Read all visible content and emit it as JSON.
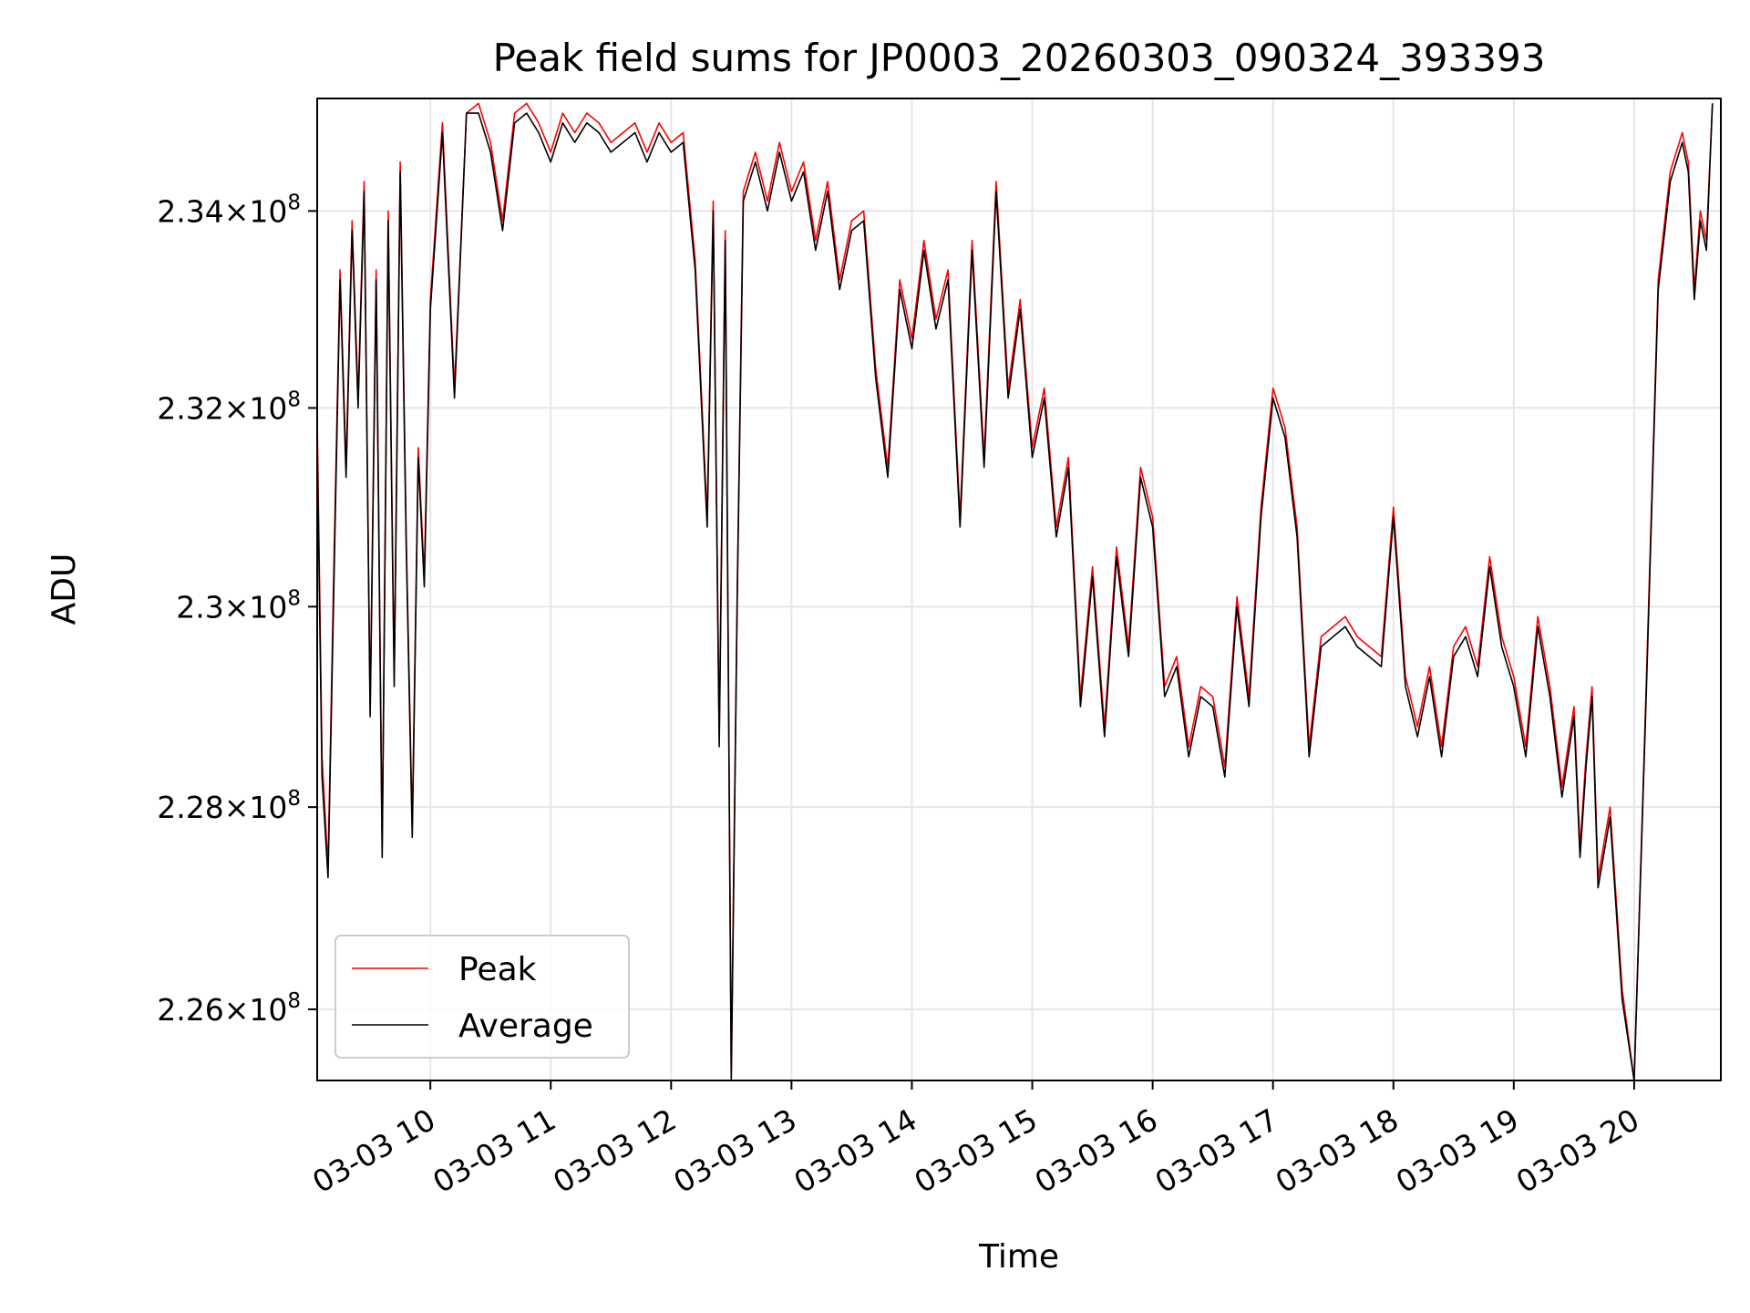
{
  "chart_data": {
    "type": "line",
    "title": "Peak field sums for JP0003_20260303_090324_393393",
    "xlabel": "Time",
    "ylabel": "ADU",
    "x_unit": "hours (date 03-03)",
    "xlim": [
      9.06,
      20.72
    ],
    "ylim": [
      225300000,
      235150000
    ],
    "y_scale": "log",
    "grid": true,
    "legend_position": "lower-left",
    "x_ticks": [
      {
        "value": 10,
        "label": "03-03 10"
      },
      {
        "value": 11,
        "label": "03-03 11"
      },
      {
        "value": 12,
        "label": "03-03 12"
      },
      {
        "value": 13,
        "label": "03-03 13"
      },
      {
        "value": 14,
        "label": "03-03 14"
      },
      {
        "value": 15,
        "label": "03-03 15"
      },
      {
        "value": 16,
        "label": "03-03 16"
      },
      {
        "value": 17,
        "label": "03-03 17"
      },
      {
        "value": 18,
        "label": "03-03 18"
      },
      {
        "value": 19,
        "label": "03-03 19"
      },
      {
        "value": 20,
        "label": "03-03 20"
      }
    ],
    "y_ticks": [
      {
        "value": 226000000,
        "mantissa": "2.26",
        "exp": "8"
      },
      {
        "value": 228000000,
        "mantissa": "2.28",
        "exp": "8"
      },
      {
        "value": 230000000,
        "mantissa": "2.3",
        "exp": "8"
      },
      {
        "value": 232000000,
        "mantissa": "2.32",
        "exp": "8"
      },
      {
        "value": 234000000,
        "mantissa": "2.34",
        "exp": "8"
      }
    ],
    "series": [
      {
        "name": "Peak",
        "color": "#ff0000",
        "x": [
          9.06,
          9.1,
          9.15,
          9.2,
          9.25,
          9.3,
          9.35,
          9.4,
          9.45,
          9.5,
          9.55,
          9.6,
          9.65,
          9.7,
          9.75,
          9.8,
          9.85,
          9.9,
          9.95,
          10.0,
          10.1,
          10.2,
          10.3,
          10.4,
          10.5,
          10.6,
          10.7,
          10.8,
          10.9,
          11.0,
          11.1,
          11.2,
          11.3,
          11.4,
          11.5,
          11.6,
          11.7,
          11.8,
          11.9,
          12.0,
          12.1,
          12.2,
          12.3,
          12.35,
          12.4,
          12.45,
          12.5,
          12.55,
          12.6,
          12.7,
          12.8,
          12.9,
          13.0,
          13.1,
          13.2,
          13.3,
          13.4,
          13.5,
          13.6,
          13.7,
          13.8,
          13.9,
          14.0,
          14.1,
          14.2,
          14.3,
          14.4,
          14.5,
          14.6,
          14.7,
          14.8,
          14.9,
          15.0,
          15.1,
          15.2,
          15.3,
          15.4,
          15.5,
          15.6,
          15.7,
          15.8,
          15.9,
          16.0,
          16.1,
          16.2,
          16.3,
          16.4,
          16.5,
          16.6,
          16.7,
          16.8,
          16.9,
          17.0,
          17.1,
          17.2,
          17.3,
          17.4,
          17.5,
          17.6,
          17.7,
          17.8,
          17.9,
          18.0,
          18.1,
          18.2,
          18.3,
          18.4,
          18.5,
          18.6,
          18.7,
          18.8,
          18.9,
          19.0,
          19.1,
          19.2,
          19.3,
          19.4,
          19.5,
          19.55,
          19.6,
          19.65,
          19.7,
          19.8,
          19.9,
          20.0,
          20.1,
          20.2,
          20.3,
          20.4,
          20.45,
          20.5,
          20.55,
          20.6,
          20.65
        ],
        "values": [
          231900000,
          228500000,
          227400000,
          230500000,
          233400000,
          231400000,
          233900000,
          232100000,
          234300000,
          229000000,
          233400000,
          227600000,
          234000000,
          229300000,
          234500000,
          230700000,
          227800000,
          231600000,
          230300000,
          233100000,
          234900000,
          232200000,
          235000000,
          235100000,
          234700000,
          233900000,
          235000000,
          235100000,
          234900000,
          234600000,
          235000000,
          234800000,
          235000000,
          234900000,
          234700000,
          234800000,
          234900000,
          234600000,
          234900000,
          234700000,
          234800000,
          233500000,
          230900000,
          234100000,
          228700000,
          233800000,
          225400000,
          230200000,
          234200000,
          234600000,
          234100000,
          234700000,
          234200000,
          234500000,
          233700000,
          234300000,
          233300000,
          233900000,
          234000000,
          232400000,
          231400000,
          233300000,
          232700000,
          233700000,
          232900000,
          233400000,
          230900000,
          233700000,
          231500000,
          234300000,
          232200000,
          233100000,
          231600000,
          232200000,
          230800000,
          231500000,
          229100000,
          230400000,
          228800000,
          230600000,
          229600000,
          231400000,
          230900000,
          229200000,
          229500000,
          228600000,
          229200000,
          229100000,
          228400000,
          230100000,
          229100000,
          231000000,
          232200000,
          231800000,
          230800000,
          228600000,
          229700000,
          229800000,
          229900000,
          229700000,
          229600000,
          229500000,
          231000000,
          229300000,
          228800000,
          229400000,
          228600000,
          229600000,
          229800000,
          229400000,
          230500000,
          229700000,
          229300000,
          228600000,
          229900000,
          229200000,
          228200000,
          229000000,
          227600000,
          228500000,
          229200000,
          227300000,
          228000000,
          226200000,
          225300000,
          229200000,
          233300000,
          234400000,
          234800000,
          234500000,
          233200000,
          234000000,
          233700000,
          235100000
        ]
      },
      {
        "name": "Average",
        "color": "#000000",
        "x": [
          9.06,
          9.1,
          9.15,
          9.2,
          9.25,
          9.3,
          9.35,
          9.4,
          9.45,
          9.5,
          9.55,
          9.6,
          9.65,
          9.7,
          9.75,
          9.8,
          9.85,
          9.9,
          9.95,
          10.0,
          10.1,
          10.2,
          10.3,
          10.4,
          10.5,
          10.6,
          10.7,
          10.8,
          10.9,
          11.0,
          11.1,
          11.2,
          11.3,
          11.4,
          11.5,
          11.6,
          11.7,
          11.8,
          11.9,
          12.0,
          12.1,
          12.2,
          12.3,
          12.35,
          12.4,
          12.45,
          12.5,
          12.55,
          12.6,
          12.7,
          12.8,
          12.9,
          13.0,
          13.1,
          13.2,
          13.3,
          13.4,
          13.5,
          13.6,
          13.7,
          13.8,
          13.9,
          14.0,
          14.1,
          14.2,
          14.3,
          14.4,
          14.5,
          14.6,
          14.7,
          14.8,
          14.9,
          15.0,
          15.1,
          15.2,
          15.3,
          15.4,
          15.5,
          15.6,
          15.7,
          15.8,
          15.9,
          16.0,
          16.1,
          16.2,
          16.3,
          16.4,
          16.5,
          16.6,
          16.7,
          16.8,
          16.9,
          17.0,
          17.1,
          17.2,
          17.3,
          17.4,
          17.5,
          17.6,
          17.7,
          17.8,
          17.9,
          18.0,
          18.1,
          18.2,
          18.3,
          18.4,
          18.5,
          18.6,
          18.7,
          18.8,
          18.9,
          19.0,
          19.1,
          19.2,
          19.3,
          19.4,
          19.5,
          19.55,
          19.6,
          19.65,
          19.7,
          19.8,
          19.9,
          20.0,
          20.1,
          20.2,
          20.3,
          20.4,
          20.45,
          20.5,
          20.55,
          20.6,
          20.65
        ],
        "values": [
          231700000,
          228300000,
          227300000,
          230300000,
          233300000,
          231300000,
          233800000,
          232000000,
          234200000,
          228900000,
          233300000,
          227500000,
          233900000,
          229200000,
          234400000,
          230600000,
          227700000,
          231500000,
          230200000,
          233000000,
          234800000,
          232100000,
          235000000,
          235000000,
          234600000,
          233800000,
          234900000,
          235000000,
          234800000,
          234500000,
          234900000,
          234700000,
          234900000,
          234800000,
          234600000,
          234700000,
          234800000,
          234500000,
          234800000,
          234600000,
          234700000,
          233400000,
          230800000,
          234000000,
          228600000,
          233700000,
          225300000,
          230100000,
          234100000,
          234500000,
          234000000,
          234600000,
          234100000,
          234400000,
          233600000,
          234200000,
          233200000,
          233800000,
          233900000,
          232300000,
          231300000,
          233200000,
          232600000,
          233600000,
          232800000,
          233300000,
          230800000,
          233600000,
          231400000,
          234200000,
          232100000,
          233000000,
          231500000,
          232100000,
          230700000,
          231400000,
          229000000,
          230300000,
          228700000,
          230500000,
          229500000,
          231300000,
          230800000,
          229100000,
          229400000,
          228500000,
          229100000,
          229000000,
          228300000,
          230000000,
          229000000,
          230900000,
          232100000,
          231700000,
          230700000,
          228500000,
          229600000,
          229700000,
          229800000,
          229600000,
          229500000,
          229400000,
          230900000,
          229200000,
          228700000,
          229300000,
          228500000,
          229500000,
          229700000,
          229300000,
          230400000,
          229600000,
          229200000,
          228500000,
          229800000,
          229100000,
          228100000,
          228900000,
          227500000,
          228400000,
          229100000,
          227200000,
          227900000,
          226100000,
          225300000,
          229100000,
          233200000,
          234300000,
          234700000,
          234400000,
          233100000,
          233900000,
          233600000,
          235100000
        ]
      }
    ]
  }
}
